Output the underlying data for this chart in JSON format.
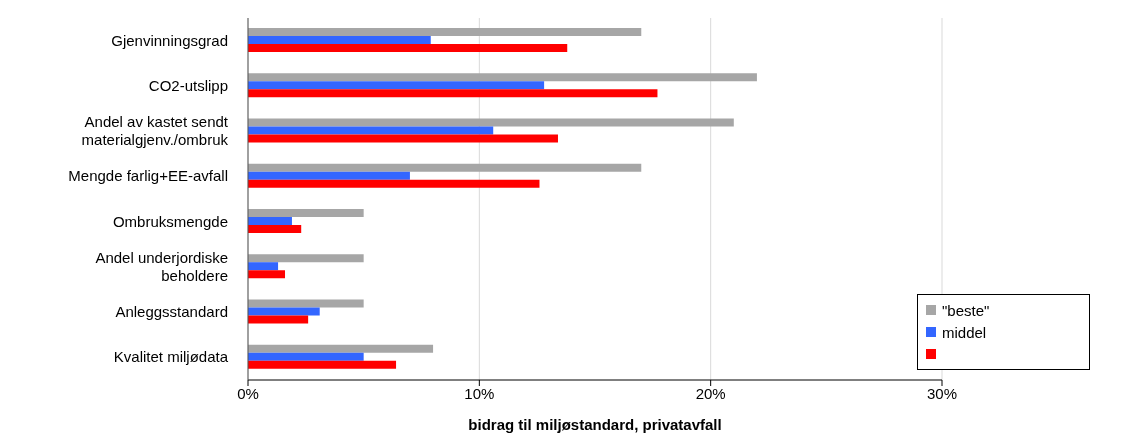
{
  "chart_data": {
    "type": "bar",
    "orientation": "horizontal",
    "xlabel": "bidrag til miljøstandard, privatavfall",
    "categories": [
      "Gjenvinningsgrad",
      "CO2-utslipp",
      "Andel av kastet sendt\nmaterialgjenv./ombruk",
      "Mengde farlig+EE-avfall",
      "Ombruksmengde",
      "Andel underjordiske\nbeholdere",
      "Anleggsstandard",
      "Kvalitet miljødata"
    ],
    "series": [
      {
        "name": "\"beste\"",
        "color": "#a6a6a6",
        "values": [
          17,
          22,
          21,
          17,
          5,
          5,
          5,
          8
        ]
      },
      {
        "name": "middel",
        "color": "#3366ff",
        "values": [
          7.9,
          12.8,
          10.6,
          7,
          1.9,
          1.3,
          3.1,
          5
        ]
      },
      {
        "color": "#ff0000",
        "values": [
          13.8,
          17.7,
          13.4,
          12.6,
          2.3,
          1.6,
          2.6,
          6.4
        ]
      }
    ],
    "xlim": [
      0,
      30
    ],
    "xticks": [
      {
        "value": 0,
        "label": "0%"
      },
      {
        "value": 10,
        "label": "10%"
      },
      {
        "value": 20,
        "label": "20%"
      },
      {
        "value": 30,
        "label": "30%"
      }
    ],
    "grid": "x",
    "legend": "bottom right"
  }
}
